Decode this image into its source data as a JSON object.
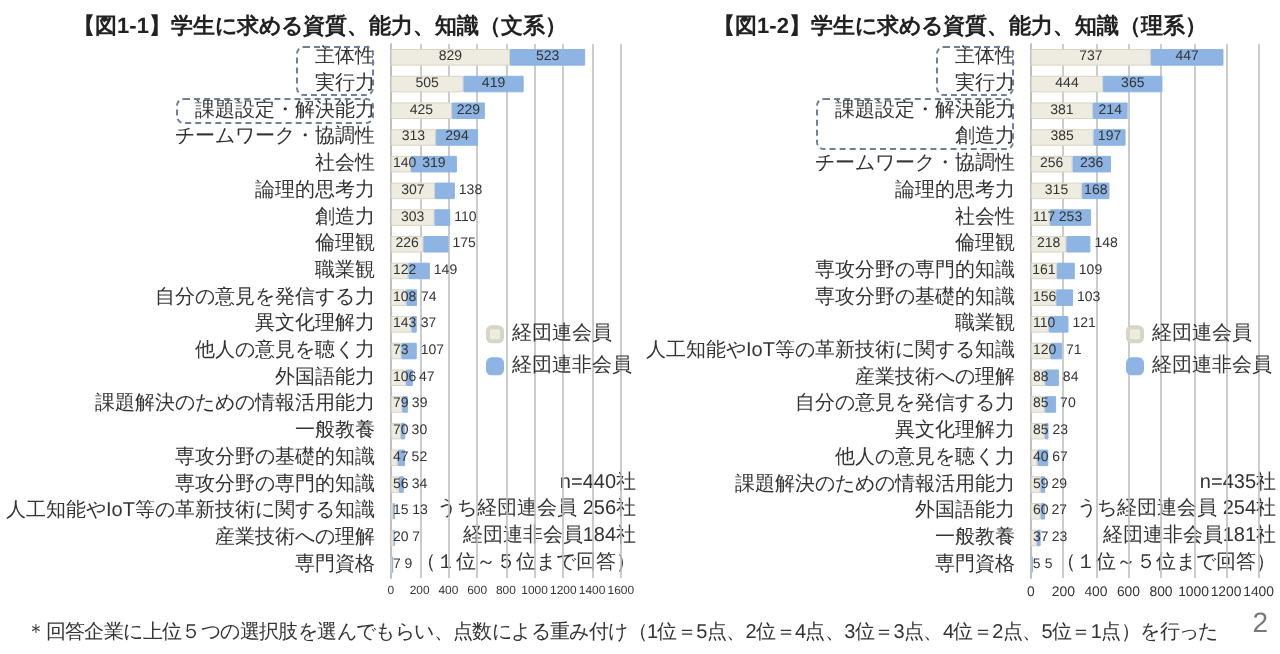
{
  "chart_data": [
    {
      "type": "bar",
      "orientation": "horizontal",
      "stacked": true,
      "title": "【図1-1】学生に求める資質、能力、知識（文系）",
      "categories": [
        "主体性",
        "実行力",
        "課題設定・解決能力",
        "チームワーク・協調性",
        "社会性",
        "論理的思考力",
        "創造力",
        "倫理観",
        "職業観",
        "自分の意見を発信する力",
        "異文化理解力",
        "他人の意見を聴く力",
        "外国語能力",
        "課題解決のための情報活用能力",
        "一般教養",
        "専攻分野の基礎的知識",
        "専攻分野の専門的知識",
        "人工知能やIoT等の革新技術に関する知識",
        "産業技術への理解",
        "専門資格"
      ],
      "series": [
        {
          "name": "経団連会員",
          "color": "#eeece1",
          "values": [
            829,
            505,
            425,
            313,
            140,
            307,
            303,
            226,
            122,
            108,
            143,
            73,
            106,
            79,
            70,
            47,
            56,
            15,
            20,
            7
          ]
        },
        {
          "name": "経団連非会員",
          "color": "#8db4e2",
          "values": [
            523,
            419,
            229,
            294,
            319,
            138,
            110,
            175,
            149,
            74,
            37,
            107,
            47,
            39,
            30,
            52,
            34,
            13,
            7,
            9
          ]
        }
      ],
      "xlim": [
        0,
        1600
      ],
      "xticks": [
        0,
        200,
        400,
        600,
        800,
        1000,
        1200,
        1400,
        1600
      ],
      "grid": "x",
      "legend": "right",
      "data_labels": true,
      "annotations": [
        "n=440社",
        "うち経団連会員 256社",
        "経団連非会員184社",
        "（１位～５位まで回答）",
        "＊回答企業に上位５つの選択肢を選んでもらい、点数による重み付け（1位＝5点、2位＝4点、3位＝3点、4位＝2点、5位＝1点）を行った"
      ]
    },
    {
      "type": "bar",
      "orientation": "horizontal",
      "stacked": true,
      "title": "【図1-2】学生に求める資質、能力、知識（理系）",
      "categories": [
        "主体性",
        "実行力",
        "課題設定・解決能力",
        "創造力",
        "チームワーク・協調性",
        "論理的思考力",
        "社会性",
        "倫理観",
        "専攻分野の専門的知識",
        "専攻分野の基礎的知識",
        "職業観",
        "人工知能やIoT等の革新技術に関する知識",
        "産業技術への理解",
        "自分の意見を発信する力",
        "異文化理解力",
        "他人の意見を聴く力",
        "課題解決のための情報活用能力",
        "外国語能力",
        "一般教養",
        "専門資格"
      ],
      "series": [
        {
          "name": "経団連会員",
          "color": "#eeece1",
          "values": [
            737,
            444,
            381,
            385,
            256,
            315,
            117,
            218,
            161,
            156,
            110,
            120,
            88,
            85,
            85,
            40,
            59,
            60,
            37,
            5
          ]
        },
        {
          "name": "経団連非会員",
          "color": "#8db4e2",
          "values": [
            447,
            365,
            214,
            197,
            236,
            168,
            253,
            148,
            109,
            103,
            121,
            71,
            84,
            70,
            23,
            67,
            29,
            27,
            23,
            5
          ]
        }
      ],
      "xlim": [
        0,
        1400
      ],
      "xticks": [
        0,
        200,
        400,
        600,
        800,
        1000,
        1200,
        1400
      ],
      "grid": "x",
      "legend": "right",
      "data_labels": true,
      "annotations": [
        "n=435社",
        "うち経団連会員 254社",
        "経団連非会員181社",
        "（１位～５位まで回答）",
        "2"
      ]
    }
  ]
}
